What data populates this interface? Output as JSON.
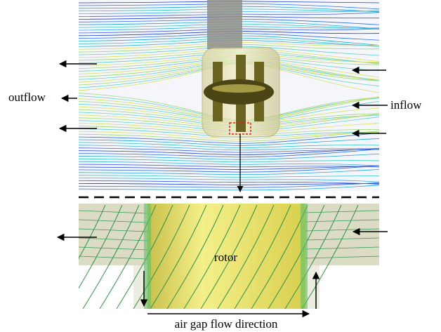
{
  "annotations": {
    "outflow": "outflow",
    "inflow": "inflow",
    "rotor": "rotor",
    "caption": "air gap flow direction"
  }
}
